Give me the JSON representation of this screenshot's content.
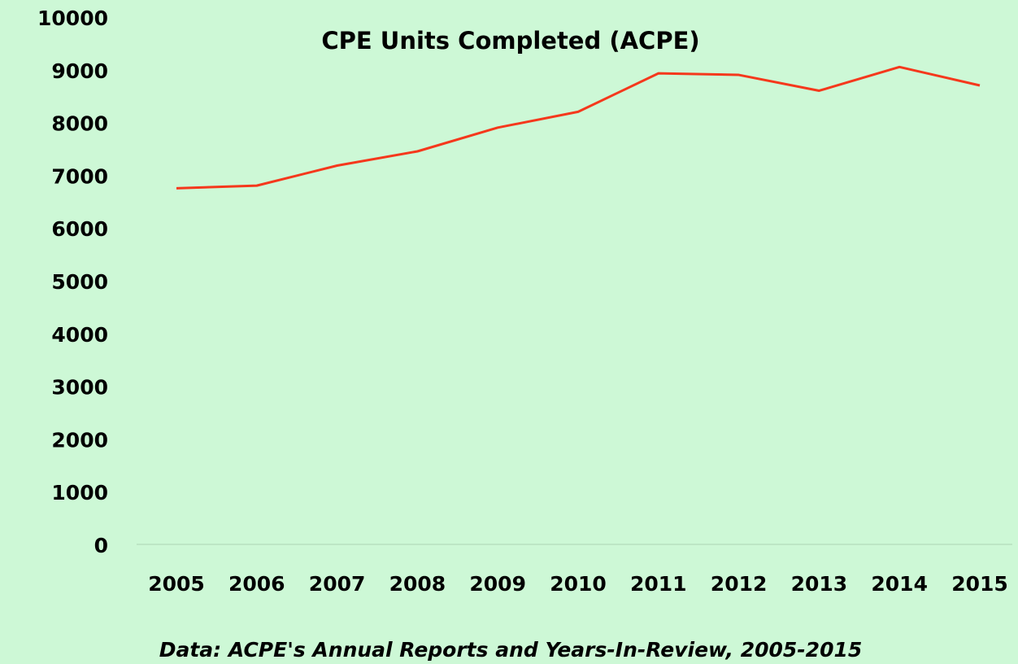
{
  "chart_data": {
    "type": "line",
    "title": "CPE Units Completed (ACPE)",
    "caption": "Data: ACPE's Annual Reports and Years-In-Review, 2005-2015",
    "categories": [
      "2005",
      "2006",
      "2007",
      "2008",
      "2009",
      "2010",
      "2011",
      "2012",
      "2013",
      "2014",
      "2015"
    ],
    "series": [
      {
        "name": "CPE Units",
        "color": "#f5381c",
        "values": [
          6800,
          6850,
          7230,
          7500,
          7950,
          8250,
          8980,
          8950,
          8650,
          9100,
          8750
        ]
      }
    ],
    "ylim": [
      0,
      10000
    ],
    "yticks": [
      0,
      1000,
      2000,
      3000,
      4000,
      5000,
      6000,
      7000,
      8000,
      9000,
      10000
    ],
    "grid": false
  }
}
